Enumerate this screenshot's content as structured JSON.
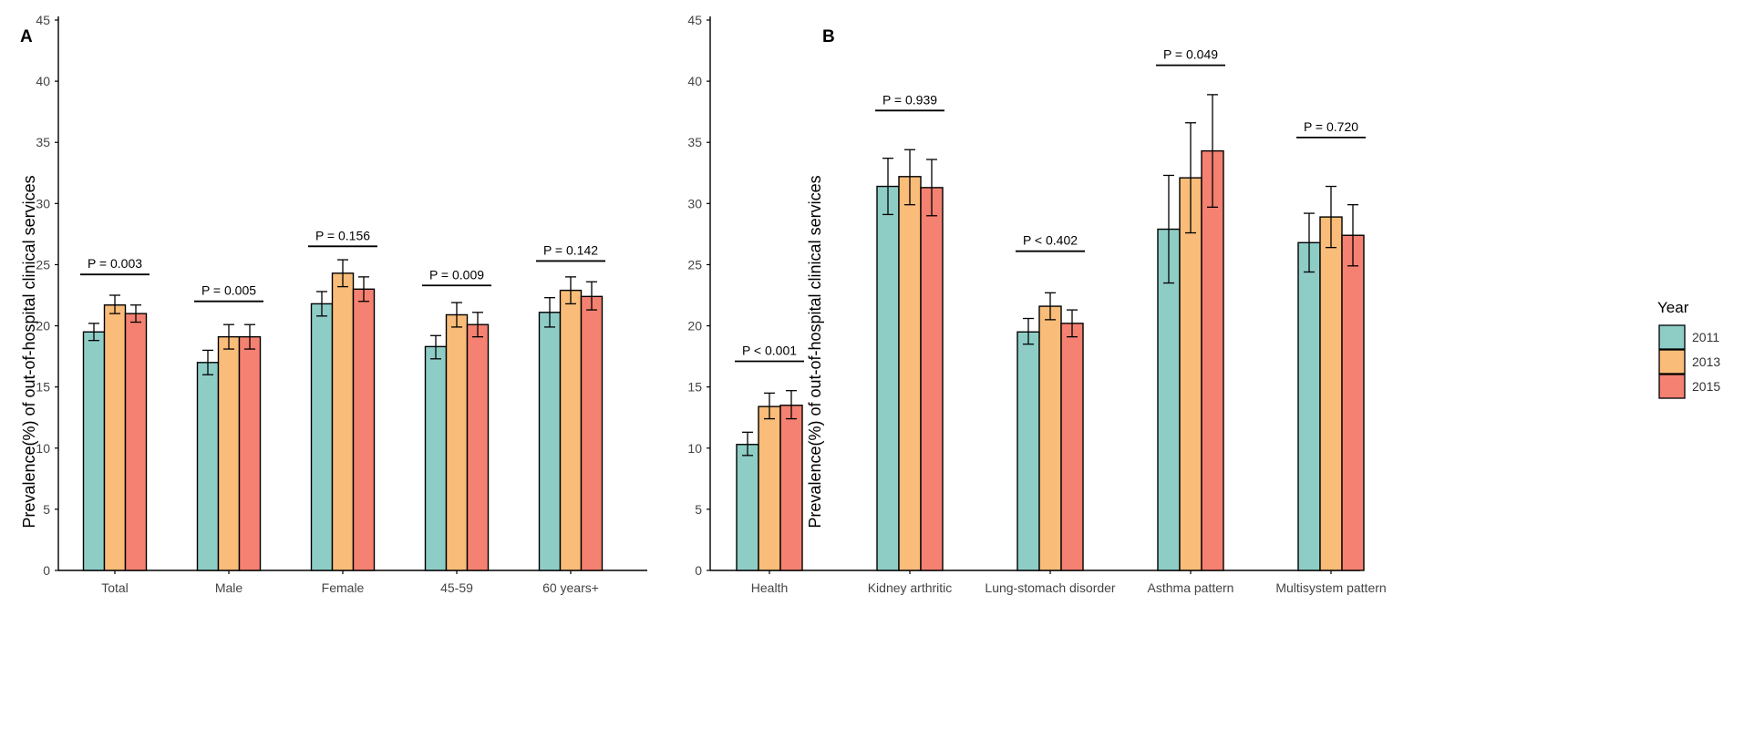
{
  "colors": {
    "y2011": "#8ecdc6",
    "y2013": "#f9bc79",
    "y2015": "#f48171",
    "axis": "#000000"
  },
  "chart_data": [
    {
      "type": "bar",
      "panel": "A",
      "title": "",
      "xlabel": "",
      "ylabel": "Prevalence(%) of out-of-hospital clinical services",
      "ylim": [
        0,
        45
      ],
      "yticks": [
        "0",
        "5",
        "10",
        "15",
        "20",
        "25",
        "30",
        "35",
        "40",
        "45"
      ],
      "grid": false,
      "categories": [
        "Total",
        "Male",
        "Female",
        "45-59",
        "60 years+"
      ],
      "series": [
        {
          "name": "2011",
          "values": [
            19.5,
            17.0,
            21.8,
            18.3,
            21.1
          ],
          "ci_low": [
            18.8,
            16.0,
            20.8,
            17.3,
            19.9
          ],
          "ci_high": [
            20.2,
            18.0,
            22.8,
            19.2,
            22.3
          ]
        },
        {
          "name": "2013",
          "values": [
            21.7,
            19.1,
            24.3,
            20.9,
            22.9
          ],
          "ci_low": [
            21.0,
            18.1,
            23.2,
            19.9,
            21.8
          ],
          "ci_high": [
            22.5,
            20.1,
            25.4,
            21.9,
            24.0
          ]
        },
        {
          "name": "2015",
          "values": [
            21.0,
            19.1,
            23.0,
            20.1,
            22.4
          ],
          "ci_low": [
            20.3,
            18.1,
            22.0,
            19.1,
            21.3
          ],
          "ci_high": [
            21.7,
            20.1,
            24.0,
            21.1,
            23.6
          ]
        }
      ],
      "annotations": [
        "P = 0.003",
        "P = 0.005",
        "P = 0.156",
        "P = 0.009",
        "P = 0.142"
      ],
      "annotation_y": [
        24.2,
        22.0,
        26.5,
        23.3,
        25.3
      ]
    },
    {
      "type": "bar",
      "panel": "B",
      "title": "",
      "xlabel": "",
      "ylabel": "Prevalence(%) of out-of-hospital clinical services",
      "ylim": [
        0,
        45
      ],
      "yticks": [
        "0",
        "5",
        "10",
        "15",
        "20",
        "25",
        "30",
        "35",
        "40",
        "45"
      ],
      "grid": false,
      "categories": [
        "Health",
        "Kidney arthritic",
        "Lung-stomach disorder",
        "Asthma pattern",
        "Multisystem pattern"
      ],
      "series": [
        {
          "name": "2011",
          "values": [
            10.3,
            31.4,
            19.5,
            27.9,
            26.8
          ],
          "ci_low": [
            9.4,
            29.1,
            18.5,
            23.5,
            24.4
          ],
          "ci_high": [
            11.3,
            33.7,
            20.6,
            32.3,
            29.2
          ]
        },
        {
          "name": "2013",
          "values": [
            13.4,
            32.2,
            21.6,
            32.1,
            28.9
          ],
          "ci_low": [
            12.4,
            29.9,
            20.5,
            27.6,
            26.4
          ],
          "ci_high": [
            14.5,
            34.4,
            22.7,
            36.6,
            31.4
          ]
        },
        {
          "name": "2015",
          "values": [
            13.5,
            31.3,
            20.2,
            34.3,
            27.4
          ],
          "ci_low": [
            12.4,
            29.0,
            19.1,
            29.7,
            24.9
          ],
          "ci_high": [
            14.7,
            33.6,
            21.3,
            38.9,
            29.9
          ]
        }
      ],
      "annotations": [
        "P < 0.001",
        "P = 0.939",
        "P < 0.402",
        "P = 0.049",
        "P = 0.720"
      ],
      "annotation_y": [
        17.1,
        37.6,
        26.1,
        41.3,
        35.4
      ]
    }
  ],
  "legend": {
    "title": "Year",
    "position": "right",
    "entries": [
      "2011",
      "2013",
      "2015"
    ]
  }
}
